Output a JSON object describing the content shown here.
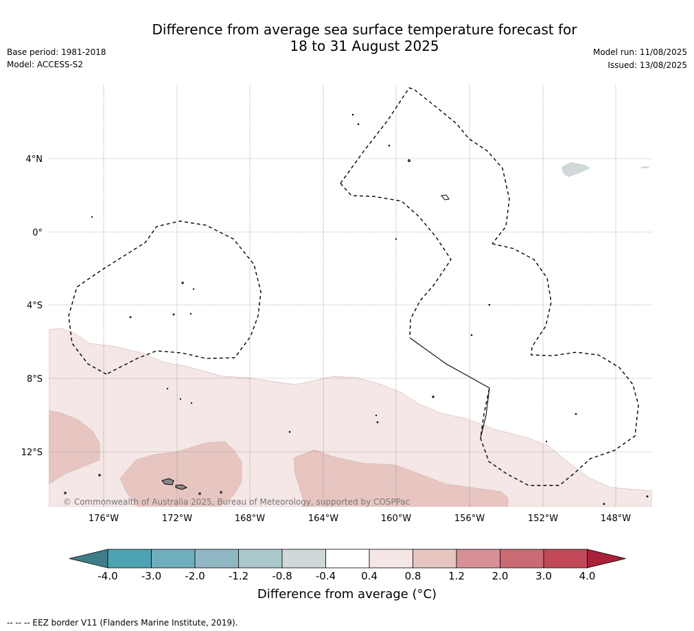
{
  "header": {
    "title_line1": "Difference from average sea surface temperature forecast for",
    "title_line2": "18 to 31 August 2025",
    "base_period": "Base period: 1981-2018",
    "model": "Model: ACCESS-S2",
    "model_run": "Model run: 11/08/2025",
    "issued": "Issued: 13/08/2025"
  },
  "map": {
    "lat_labels": [
      "4°N",
      "0°",
      "4°S",
      "8°S",
      "12°S"
    ],
    "lon_labels": [
      "176°W",
      "172°W",
      "168°W",
      "164°W",
      "160°W",
      "156°W",
      "152°W",
      "148°W"
    ],
    "copyright": "© Commonwealth of Australia 2025, Bureau of Meteorology, supported by COSPPac"
  },
  "colorbar": {
    "ticks": [
      "-4.0",
      "-3.0",
      "-2.0",
      "-1.2",
      "-0.8",
      "-0.4",
      "0.4",
      "0.8",
      "1.2",
      "2.0",
      "3.0",
      "4.0"
    ],
    "colors": [
      "#3d7d88",
      "#4ca3b2",
      "#6faebe",
      "#90b8c4",
      "#abc8cd",
      "#d0d8da",
      "#ffffff",
      "#f4e7e5",
      "#e7c6c2",
      "#d79196",
      "#cc6a74",
      "#c24a58",
      "#a8203a"
    ],
    "title": "Difference from average (°C)"
  },
  "footer": {
    "legend": "--  --  -- EEZ border V11 (Flanders Marine Institute, 2019)."
  }
}
